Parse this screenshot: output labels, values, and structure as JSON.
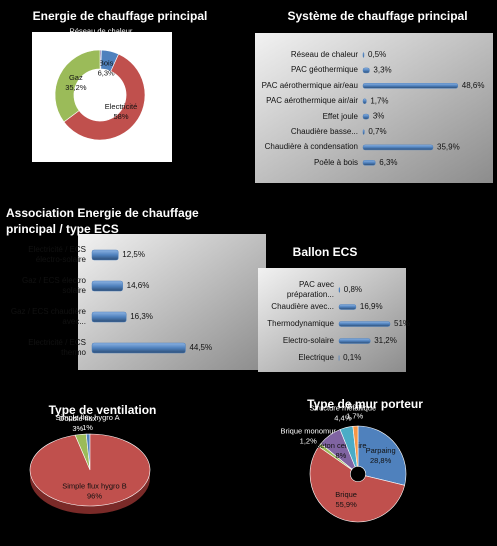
{
  "chart_data": [
    {
      "type": "donut",
      "title": "Energie de chauffage principal",
      "categories": [
        "Réseau de chaleur",
        "Bois",
        "Electricité",
        "Gaz"
      ],
      "values": [
        0.5,
        6.3,
        58,
        35.2
      ],
      "value_labels": [
        "0,5%",
        "6,3%",
        "58%",
        "35,2%"
      ],
      "colors": [
        "#8064a2",
        "#4f81bd",
        "#c0504d",
        "#9bbb59"
      ]
    },
    {
      "type": "hbar",
      "title": "Système de chauffage principal",
      "categories": [
        "Réseau de chaleur",
        "PAC géothermique",
        "PAC aérothermique air/eau",
        "PAC aérothermique air/air",
        "Effet joule",
        "Chaudière basse...",
        "Chaudière à condensation",
        "Poêle à bois"
      ],
      "values": [
        0.5,
        3.3,
        48.6,
        1.7,
        3,
        0.7,
        35.9,
        6.3
      ],
      "value_labels": [
        "0,5%",
        "3,3%",
        "48,6%",
        "1,7%",
        "3%",
        "0,7%",
        "35,9%",
        "6,3%"
      ],
      "color": "#4f81bd"
    },
    {
      "type": "hbar",
      "title": "Association Energie de chauffage principal / type ECS",
      "categories": [
        "Electricité / ECS électro-solaire",
        "Gaz / ECS électro solaire",
        "Gaz / ECS chaudière avec...",
        "Electricité / ECS thermo"
      ],
      "values": [
        12.5,
        14.6,
        16.3,
        44.5
      ],
      "value_labels": [
        "12,5%",
        "14,6%",
        "16,3%",
        "44,5%"
      ],
      "color": "#4f81bd"
    },
    {
      "type": "hbar",
      "title": "Ballon ECS",
      "categories": [
        "PAC avec préparation...",
        "Chaudière avec...",
        "Thermodynamique",
        "Electro-solaire",
        "Electrique"
      ],
      "values": [
        0.8,
        16.9,
        51,
        31.2,
        0.1
      ],
      "value_labels": [
        "0,8%",
        "16,9%",
        "51%",
        "31,2%",
        "0,1%"
      ],
      "color": "#4f81bd"
    },
    {
      "type": "pie",
      "title": "Type de ventilation",
      "categories": [
        "Double flux",
        "Simple flux hygro A",
        "Simple flux hygro B"
      ],
      "values": [
        3,
        1,
        96
      ],
      "value_labels": [
        "3%",
        "1%",
        "96%"
      ],
      "colors": [
        "#9bbb59",
        "#4f81bd",
        "#c0504d"
      ]
    },
    {
      "type": "pie",
      "title": "Type de mur porteur",
      "categories": [
        "Parpaing",
        "Brique",
        "Brique monomur",
        "Béton cellulaire",
        "Structure métallique",
        "Bois"
      ],
      "values": [
        28.8,
        55.9,
        1.2,
        8,
        4.4,
        1.7
      ],
      "value_labels": [
        "28,8%",
        "55,9%",
        "1,2%",
        "8%",
        "4,4%",
        "1,7%"
      ],
      "colors": [
        "#4f81bd",
        "#c0504d",
        "#9bbb59",
        "#8064a2",
        "#4bacc6",
        "#f79646"
      ]
    }
  ]
}
